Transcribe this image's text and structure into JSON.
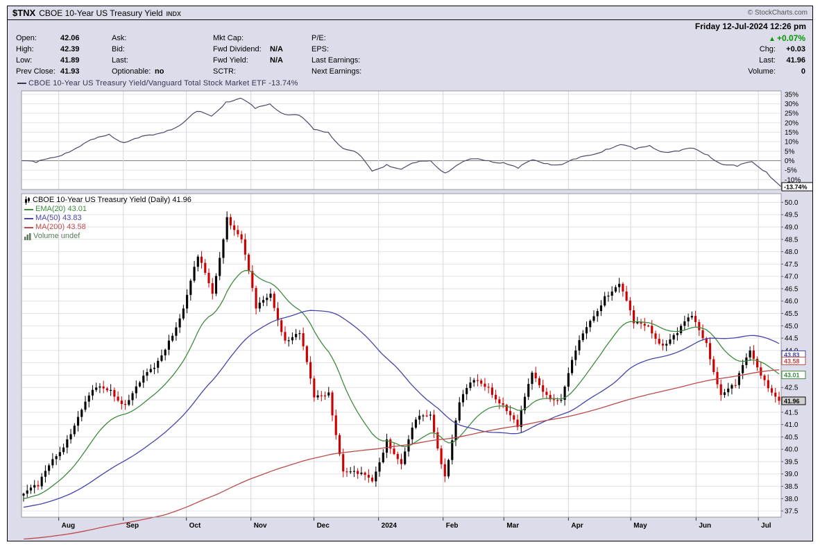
{
  "header": {
    "symbol": "$TNX",
    "title": "CBOE 10-Year US Treasury Yield",
    "exchange": "INDX",
    "copyright": "© StockCharts.com",
    "datetime": "Friday 12-Jul-2024 12:26 pm"
  },
  "quote_panel": {
    "columns": [
      {
        "rows": [
          {
            "label": "Open:",
            "value": "42.06"
          },
          {
            "label": "High:",
            "value": "42.39"
          },
          {
            "label": "Low:",
            "value": "41.89"
          },
          {
            "label": "Prev Close:",
            "value": "41.93"
          }
        ]
      },
      {
        "rows": [
          {
            "label": "Ask:",
            "value": ""
          },
          {
            "label": "Bid:",
            "value": ""
          },
          {
            "label": "Last:",
            "value": ""
          },
          {
            "label": "Optionable:",
            "value": "no"
          }
        ]
      },
      {
        "rows": [
          {
            "label": "Mkt Cap:",
            "value": ""
          },
          {
            "label": "Fwd Dividend:",
            "value": "N/A"
          },
          {
            "label": "Fwd Yield:",
            "value": "N/A"
          },
          {
            "label": "SCTR:",
            "value": ""
          }
        ]
      },
      {
        "rows": [
          {
            "label": "P/E:",
            "value": ""
          },
          {
            "label": "EPS:",
            "value": ""
          },
          {
            "label": "Last Earnings:",
            "value": ""
          },
          {
            "label": "Next Earnings:",
            "value": ""
          }
        ]
      }
    ],
    "summary": {
      "pct_change": "+0.07%",
      "up_color": "#009900",
      "rows": [
        {
          "label": "Chg:",
          "value": "+0.03"
        },
        {
          "label": "Last:",
          "value": "41.96"
        },
        {
          "label": "Volume:",
          "value": "0"
        }
      ]
    }
  },
  "xaxis": {
    "months": [
      {
        "label": "Aug",
        "pos": 0.049
      },
      {
        "label": "Sep",
        "pos": 0.134
      },
      {
        "label": "Oct",
        "pos": 0.217
      },
      {
        "label": "Nov",
        "pos": 0.302
      },
      {
        "label": "Dec",
        "pos": 0.385
      },
      {
        "label": "2024",
        "pos": 0.47
      },
      {
        "label": "Feb",
        "pos": 0.555
      },
      {
        "label": "Mar",
        "pos": 0.635
      },
      {
        "label": "Apr",
        "pos": 0.72
      },
      {
        "label": "May",
        "pos": 0.802
      },
      {
        "label": "Jun",
        "pos": 0.888
      },
      {
        "label": "Jul",
        "pos": 0.97
      }
    ]
  },
  "chart_data": [
    {
      "type": "line",
      "title": "CBOE 10-Year US Treasury Yield/Vanguard Total Stock Market ETF -13.74%",
      "title_color": "#33334d",
      "line_color": "#4a4a68",
      "ylim": [
        -15.2,
        36.8
      ],
      "yticks": [
        35,
        30,
        25,
        20,
        15,
        10,
        5,
        0,
        -5,
        -10
      ],
      "ytick_suffix": "%",
      "zero_line": true,
      "x_unit": "weekly Jul-2023 to 12-Jul-2024",
      "values": [
        0.0,
        -1.0,
        1.5,
        4.0,
        7.5,
        11.5,
        14.0,
        9.5,
        12.0,
        13.5,
        16.0,
        19.5,
        26.0,
        23.5,
        31.0,
        33.0,
        27.5,
        30.0,
        24.5,
        24.0,
        16.5,
        15.0,
        6.5,
        4.0,
        -5.5,
        -2.0,
        -4.5,
        -1.0,
        0.0,
        -6.5,
        -1.5,
        1.0,
        0.0,
        -1.0,
        -4.0,
        0.5,
        -1.5,
        -2.0,
        1.0,
        3.0,
        6.0,
        8.5,
        6.0,
        8.0,
        4.5,
        5.0,
        6.5,
        3.0,
        -2.0,
        -3.0,
        -0.5,
        -6.0,
        -13.74
      ],
      "end_tag": {
        "text": "-13.74%",
        "value": -13.74,
        "color": "#000000"
      }
    },
    {
      "type": "candlestick",
      "title": "CBOE 10-Year US Treasury Yield (Daily) 41.96",
      "last_price": 41.96,
      "up_color": "#000000",
      "down_color": "#cc0000",
      "ylim": [
        37.25,
        50.35
      ],
      "yticks": [
        50.0,
        49.5,
        49.0,
        48.5,
        48.0,
        47.5,
        47.0,
        46.5,
        46.0,
        45.5,
        45.0,
        44.5,
        44.0,
        43.5,
        43.0,
        42.5,
        42.0,
        41.5,
        41.0,
        40.5,
        40.0,
        39.5,
        39.0,
        38.5,
        38.0,
        37.5
      ],
      "x_unit": "weekly close anchors Jul-2023 to 12-Jul-2024",
      "weekly_closes": [
        38.2,
        38.5,
        39.6,
        40.4,
        41.6,
        42.5,
        42.4,
        41.8,
        42.7,
        43.3,
        44.4,
        45.7,
        47.8,
        46.3,
        49.4,
        48.5,
        45.7,
        46.3,
        44.4,
        44.7,
        42.1,
        42.3,
        39.1,
        39.0,
        38.7,
        40.4,
        39.4,
        41.2,
        41.4,
        38.9,
        41.9,
        42.8,
        42.5,
        41.8,
        40.9,
        43.1,
        42.2,
        42.0,
        44.0,
        45.2,
        46.2,
        46.7,
        45.1,
        45.0,
        44.2,
        44.7,
        45.4,
        44.3,
        42.2,
        42.6,
        44.0,
        42.8,
        41.96
      ],
      "bars_per_week": 4,
      "ma_prehistory": {
        "bars": 160,
        "from": 34.5,
        "to": 38.2
      },
      "overlays": [
        {
          "legend": "EMA(20) 43.01",
          "type": "ema",
          "period": 20,
          "last": 43.01,
          "color": "#3d8b3d"
        },
        {
          "legend": "MA(50) 43.83",
          "type": "sma",
          "period": 50,
          "last": 43.83,
          "color": "#4444aa"
        },
        {
          "legend": "MA(200) 43.58",
          "type": "sma",
          "period": 200,
          "last": 43.58,
          "color": "#bb4a4a"
        }
      ],
      "volume_legend": "Volume undef",
      "volume_color": "#5a7a5a",
      "price_tags": [
        {
          "text": "43.83",
          "value": 43.83,
          "color": "#4444aa",
          "filled": false
        },
        {
          "text": "43.58",
          "value": 43.58,
          "color": "#bb4a4a",
          "filled": false
        },
        {
          "text": "43.01",
          "value": 43.01,
          "color": "#3d8b3d",
          "filled": false
        },
        {
          "text": "41.96",
          "value": 41.96,
          "color": "#000000",
          "filled": true
        }
      ]
    }
  ]
}
